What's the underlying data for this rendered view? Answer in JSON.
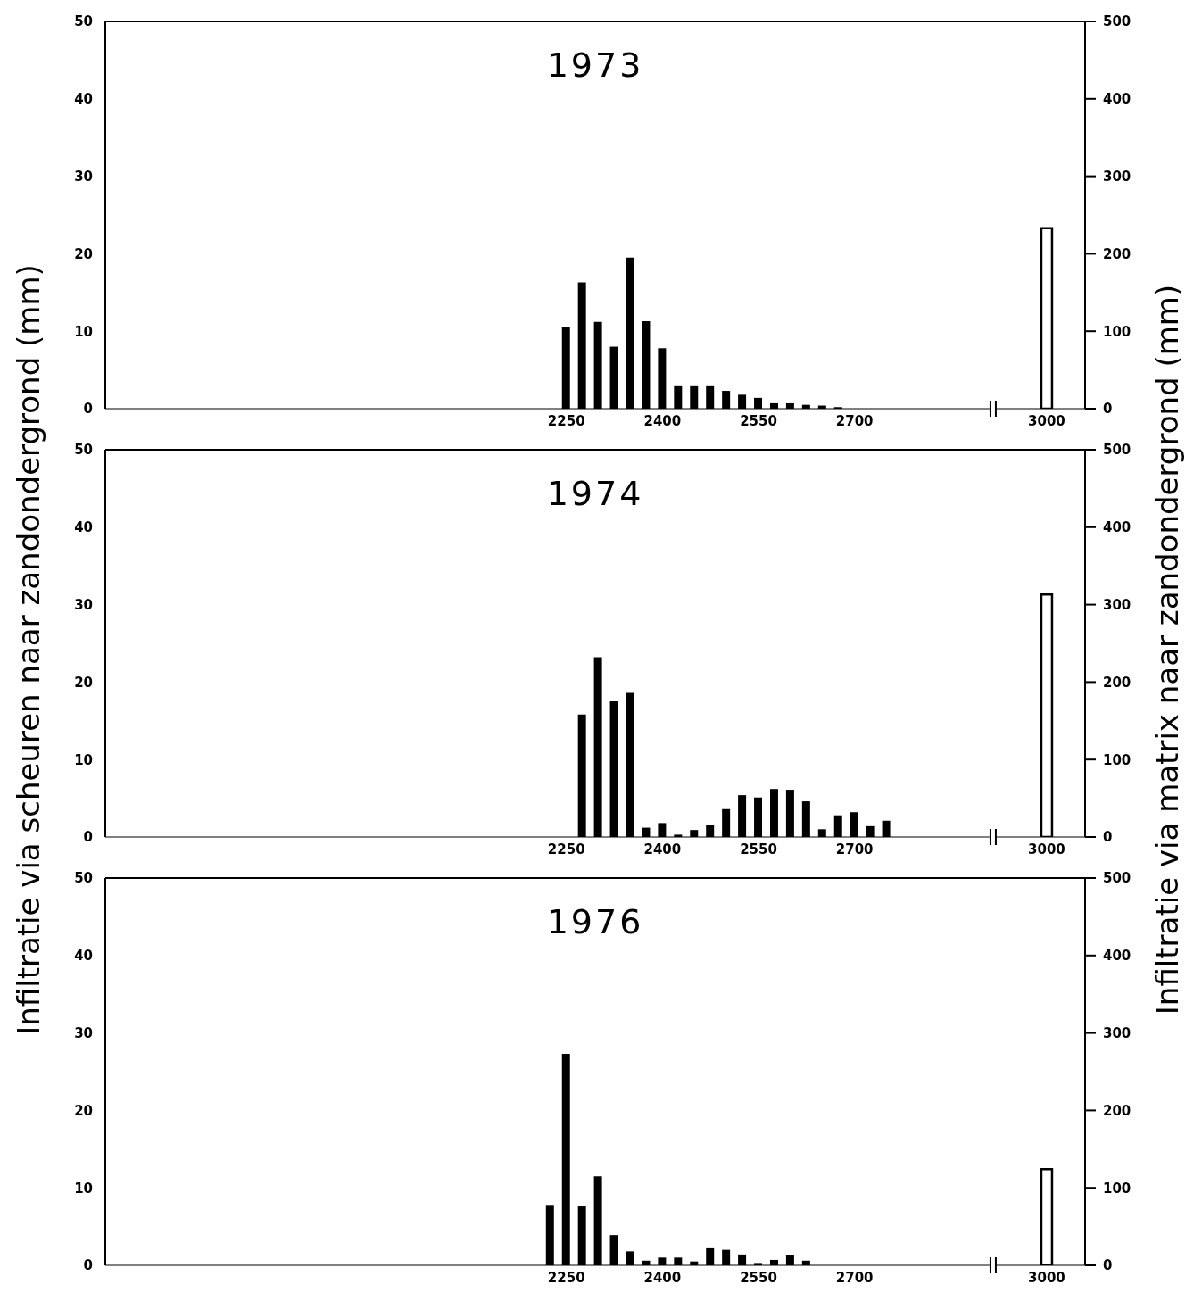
{
  "chart_data": [
    {
      "type": "bar",
      "title": "1973",
      "x": [
        2250,
        2275,
        2300,
        2325,
        2350,
        2375,
        2400,
        2425,
        2450,
        2475,
        2500,
        2525,
        2550,
        2575,
        2600,
        2625,
        2650,
        2675,
        3000
      ],
      "xlim": [
        1530,
        3060
      ],
      "xticks": [
        2250,
        2400,
        2550,
        2700,
        3000
      ],
      "ylim": [
        0,
        50
      ],
      "yticks": [
        0,
        10,
        20,
        30,
        40,
        50
      ],
      "y2lim": [
        0,
        500
      ],
      "y2ticks": [
        0,
        100,
        200,
        300,
        400,
        500
      ],
      "grid": false,
      "legend": false,
      "series": [
        {
          "color": "#000000",
          "values": [
            10.5,
            16.3,
            11.2,
            8.0,
            19.5,
            11.3,
            7.8,
            2.9,
            2.9,
            2.9,
            2.3,
            1.8,
            1.4,
            0.7,
            0.7,
            0.5,
            0.4,
            0.2,
            null
          ]
        },
        {
          "type": "bar",
          "axis": "y2",
          "color": "#ffffff",
          "values": [
            null,
            null,
            null,
            null,
            null,
            null,
            null,
            null,
            null,
            null,
            null,
            null,
            null,
            null,
            null,
            null,
            null,
            null,
            233
          ]
        }
      ]
    },
    {
      "type": "bar",
      "title": "1974",
      "ylabel": "Infiltratie via scheuren naar zandondergrond (mm)",
      "y2label": "Infiltratie via matrix naar zandondergrond (mm)",
      "x": [
        2250,
        2275,
        2300,
        2325,
        2350,
        2375,
        2400,
        2425,
        2450,
        2475,
        2500,
        2525,
        2550,
        2575,
        2600,
        2625,
        2650,
        2675,
        2700,
        2725,
        2750,
        3000
      ],
      "xlim": [
        1530,
        3060
      ],
      "xticks": [
        2250,
        2400,
        2550,
        2700,
        3000
      ],
      "ylim": [
        0,
        50
      ],
      "yticks": [
        0,
        10,
        20,
        30,
        40,
        50
      ],
      "y2lim": [
        0,
        500
      ],
      "y2ticks": [
        0,
        100,
        200,
        300,
        400,
        500
      ],
      "grid": false,
      "legend": false,
      "series": [
        {
          "color": "#000000",
          "values": [
            0,
            15.8,
            23.2,
            17.5,
            18.6,
            1.2,
            1.8,
            0.3,
            0.9,
            1.6,
            3.6,
            5.4,
            5.1,
            6.2,
            6.1,
            4.6,
            1.0,
            2.8,
            3.2,
            1.4,
            2.1,
            null
          ]
        },
        {
          "type": "bar",
          "axis": "y2",
          "color": "#ffffff",
          "values": [
            null,
            null,
            null,
            null,
            null,
            null,
            null,
            null,
            null,
            null,
            null,
            null,
            null,
            null,
            null,
            null,
            null,
            null,
            null,
            null,
            null,
            313
          ]
        }
      ]
    },
    {
      "type": "bar",
      "title": "1976",
      "x": [
        2225,
        2250,
        2275,
        2300,
        2325,
        2350,
        2375,
        2400,
        2425,
        2450,
        2475,
        2500,
        2525,
        2550,
        2575,
        2600,
        2625,
        3000
      ],
      "xlim": [
        1530,
        3060
      ],
      "xticks": [
        2250,
        2400,
        2550,
        2700,
        3000
      ],
      "ylim": [
        0,
        50
      ],
      "yticks": [
        0,
        10,
        20,
        30,
        40,
        50
      ],
      "y2lim": [
        0,
        500
      ],
      "y2ticks": [
        0,
        100,
        200,
        300,
        400,
        500
      ],
      "grid": false,
      "legend": false,
      "series": [
        {
          "color": "#000000",
          "values": [
            7.8,
            27.3,
            7.6,
            11.5,
            3.9,
            1.8,
            0.6,
            1.0,
            1.0,
            0.5,
            2.2,
            2.0,
            1.4,
            0.3,
            0.7,
            1.3,
            0.6,
            null
          ]
        },
        {
          "type": "bar",
          "axis": "y2",
          "color": "#ffffff",
          "values": [
            null,
            null,
            null,
            null,
            null,
            null,
            null,
            null,
            null,
            null,
            null,
            null,
            null,
            null,
            null,
            null,
            null,
            124
          ]
        }
      ]
    }
  ]
}
